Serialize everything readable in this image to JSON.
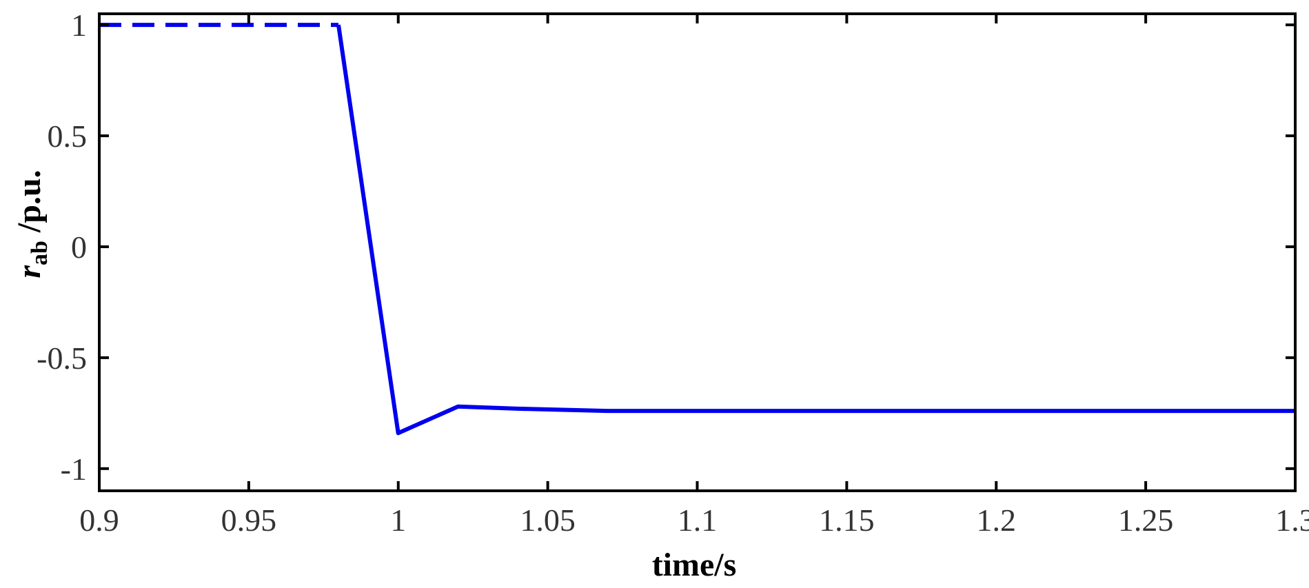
{
  "chart_data": {
    "type": "line",
    "xlabel": "time/s",
    "ylabel": {
      "main": "r",
      "subscript": "ab",
      "unit": " /p.u."
    },
    "xlim": [
      0.9,
      1.3
    ],
    "ylim": [
      -1.1,
      1.05
    ],
    "xticks": [
      0.9,
      0.95,
      1,
      1.05,
      1.1,
      1.15,
      1.2,
      1.25,
      1.3
    ],
    "xtick_labels": [
      "0.9",
      "0.95",
      "1",
      "1.05",
      "1.1",
      "1.15",
      "1.2",
      "1.25",
      "1.3"
    ],
    "yticks": [
      1,
      0.5,
      0,
      -0.5,
      -1
    ],
    "ytick_labels": [
      "1",
      "0.5",
      "0",
      "-0.5",
      "-1"
    ],
    "grid": false,
    "series": [
      {
        "style": "dashed",
        "color": "#0000ee",
        "x": [
          0.9,
          0.98
        ],
        "y": [
          1.0,
          1.0
        ]
      },
      {
        "style": "solid",
        "color": "#0000ee",
        "x": [
          0.98,
          1.0,
          1.02,
          1.04,
          1.07,
          1.3
        ],
        "y": [
          1.0,
          -0.84,
          -0.72,
          -0.73,
          -0.74,
          -0.74
        ]
      }
    ]
  }
}
